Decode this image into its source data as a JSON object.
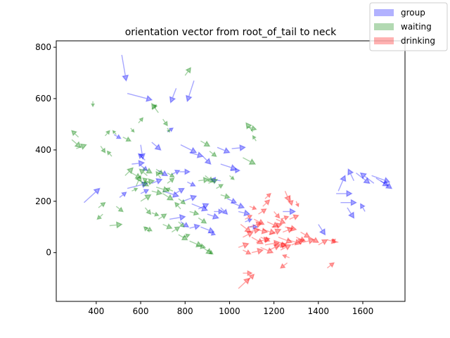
{
  "chart_data": {
    "type": "quiver",
    "title": "orientation vector from root_of_tail to neck",
    "xlabel": "",
    "ylabel": "",
    "xlim": [
      220,
      1790
    ],
    "ylim": [
      -190,
      825
    ],
    "xticks": [
      400,
      600,
      800,
      1000,
      1200,
      1400,
      1600
    ],
    "yticks": [
      0,
      200,
      400,
      600,
      800
    ],
    "xtick_labels": [
      "400",
      "600",
      "800",
      "1000",
      "1200",
      "1400",
      "1600"
    ],
    "ytick_labels": [
      "0",
      "200",
      "400",
      "600",
      "800"
    ],
    "grid": false,
    "legend_position": "top-right",
    "legend": [
      {
        "label": "group",
        "color": "#0000ff"
      },
      {
        "label": "waiting",
        "color": "#008000"
      },
      {
        "label": "drinking",
        "color": "#ff0000"
      }
    ],
    "series": [
      {
        "name": "group",
        "color": "#0000ff",
        "arrows": [
          [
            515,
            770,
            20,
            -100
          ],
          [
            540,
            620,
            110,
            -25
          ],
          [
            760,
            640,
            -25,
            -55
          ],
          [
            840,
            670,
            -30,
            -80
          ],
          [
            720,
            470,
            25,
            15
          ],
          [
            480,
            460,
            30,
            -15
          ],
          [
            600,
            420,
            10,
            -55
          ],
          [
            650,
            430,
            40,
            -30
          ],
          [
            780,
            420,
            70,
            -30
          ],
          [
            820,
            390,
            60,
            -15
          ],
          [
            880,
            375,
            35,
            -30
          ],
          [
            945,
            410,
            55,
            -20
          ],
          [
            1010,
            405,
            60,
            5
          ],
          [
            960,
            345,
            70,
            -20
          ],
          [
            1005,
            320,
            40,
            0
          ],
          [
            960,
            280,
            -45,
            5
          ],
          [
            345,
            195,
            70,
            55
          ],
          [
            505,
            215,
            30,
            20
          ],
          [
            540,
            250,
            90,
            20
          ],
          [
            600,
            230,
            35,
            15
          ],
          [
            680,
            320,
            40,
            -20
          ],
          [
            740,
            305,
            35,
            15
          ],
          [
            775,
            315,
            45,
            0
          ],
          [
            810,
            275,
            35,
            -15
          ],
          [
            560,
            345,
            55,
            5
          ],
          [
            620,
            360,
            -30,
            25
          ],
          [
            600,
            340,
            30,
            -20
          ],
          [
            650,
            270,
            45,
            15
          ],
          [
            700,
            240,
            70,
            -20
          ],
          [
            755,
            230,
            40,
            20
          ],
          [
            790,
            200,
            60,
            20
          ],
          [
            830,
            190,
            70,
            -25
          ],
          [
            860,
            170,
            45,
            20
          ],
          [
            900,
            150,
            50,
            -15
          ],
          [
            930,
            160,
            40,
            0
          ],
          [
            960,
            175,
            30,
            -25
          ],
          [
            730,
            130,
            70,
            10
          ],
          [
            780,
            120,
            35,
            -20
          ],
          [
            820,
            95,
            45,
            10
          ],
          [
            870,
            100,
            60,
            -20
          ],
          [
            905,
            80,
            30,
            -10
          ],
          [
            990,
            210,
            40,
            -15
          ],
          [
            1010,
            195,
            55,
            -20
          ],
          [
            1040,
            160,
            50,
            -10
          ],
          [
            1070,
            120,
            30,
            10
          ],
          [
            1085,
            100,
            40,
            0
          ],
          [
            1240,
            160,
            55,
            0
          ],
          [
            1400,
            110,
            30,
            -40
          ],
          [
            1480,
            230,
            70,
            0
          ],
          [
            1500,
            195,
            70,
            0
          ],
          [
            1530,
            175,
            30,
            -40
          ],
          [
            1560,
            280,
            -25,
            45
          ],
          [
            1570,
            310,
            60,
            -40
          ],
          [
            1610,
            160,
            -20,
            30
          ],
          [
            1640,
            300,
            80,
            -25
          ],
          [
            1660,
            290,
            55,
            -30
          ],
          [
            1680,
            280,
            50,
            -30
          ],
          [
            1490,
            240,
            30,
            60
          ],
          [
            1650,
            270,
            -60,
            40
          ]
        ]
      },
      {
        "name": "waiting",
        "color": "#008000",
        "arrows": [
          [
            290,
            440,
            40,
            -30
          ],
          [
            310,
            405,
            45,
            15
          ],
          [
            320,
            450,
            -30,
            25
          ],
          [
            385,
            590,
            0,
            -20
          ],
          [
            420,
            415,
            20,
            -25
          ],
          [
            440,
            455,
            20,
            20
          ],
          [
            470,
            375,
            -20,
            20
          ],
          [
            490,
            460,
            -15,
            15
          ],
          [
            520,
            450,
            35,
            -15
          ],
          [
            555,
            485,
            15,
            -15
          ],
          [
            590,
            505,
            20,
            20
          ],
          [
            650,
            560,
            20,
            15
          ],
          [
            680,
            545,
            -30,
            35
          ],
          [
            700,
            520,
            20,
            -25
          ],
          [
            720,
            485,
            10,
            -15
          ],
          [
            800,
            690,
            25,
            30
          ],
          [
            1080,
            490,
            40,
            -10
          ],
          [
            1105,
            470,
            -30,
            35
          ],
          [
            1120,
            435,
            -15,
            20
          ],
          [
            1060,
            370,
            55,
            -25
          ],
          [
            870,
            435,
            40,
            -20
          ],
          [
            910,
            395,
            30,
            -20
          ],
          [
            410,
            175,
            30,
            20
          ],
          [
            430,
            150,
            -25,
            -20
          ],
          [
            460,
            105,
            55,
            5
          ],
          [
            490,
            180,
            30,
            -20
          ],
          [
            530,
            300,
            35,
            30
          ],
          [
            560,
            310,
            40,
            -20
          ],
          [
            585,
            285,
            50,
            -25
          ],
          [
            610,
            330,
            40,
            -20
          ],
          [
            640,
            270,
            -30,
            20
          ],
          [
            670,
            255,
            55,
            -15
          ],
          [
            700,
            230,
            45,
            -25
          ],
          [
            720,
            270,
            30,
            20
          ],
          [
            745,
            240,
            -30,
            10
          ],
          [
            770,
            210,
            30,
            -20
          ],
          [
            600,
            200,
            45,
            25
          ],
          [
            620,
            175,
            25,
            -25
          ],
          [
            650,
            155,
            30,
            -10
          ],
          [
            680,
            130,
            35,
            20
          ],
          [
            700,
            110,
            40,
            -15
          ],
          [
            740,
            80,
            35,
            20
          ],
          [
            770,
            70,
            40,
            -20
          ],
          [
            790,
            60,
            30,
            10
          ],
          [
            820,
            45,
            55,
            -20
          ],
          [
            850,
            30,
            40,
            -10
          ],
          [
            880,
            20,
            40,
            -25
          ],
          [
            900,
            10,
            25,
            -15
          ],
          [
            560,
            240,
            25,
            10
          ],
          [
            650,
            240,
            45,
            -10
          ],
          [
            690,
            290,
            -20,
            25
          ],
          [
            720,
            310,
            30,
            -15
          ],
          [
            630,
            300,
            -35,
            25
          ],
          [
            600,
            270,
            60,
            10
          ],
          [
            670,
            325,
            30,
            -20
          ],
          [
            940,
            250,
            30,
            15
          ],
          [
            960,
            225,
            40,
            -10
          ],
          [
            905,
            270,
            40,
            15
          ],
          [
            890,
            300,
            35,
            -25
          ],
          [
            860,
            280,
            45,
            5
          ],
          [
            780,
            170,
            -25,
            25
          ],
          [
            820,
            160,
            40,
            -10
          ],
          [
            860,
            135,
            35,
            -20
          ],
          [
            770,
            120,
            25,
            -20
          ],
          [
            620,
            100,
            30,
            -15
          ],
          [
            640,
            80,
            -25,
            20
          ],
          [
            580,
            260,
            20,
            40
          ],
          [
            1000,
            300,
            20,
            -15
          ]
        ]
      },
      {
        "name": "drinking",
        "color": "#ff0000",
        "arrows": [
          [
            1050,
            110,
            45,
            -30
          ],
          [
            1080,
            80,
            55,
            10
          ],
          [
            1100,
            60,
            50,
            -25
          ],
          [
            1120,
            40,
            60,
            15
          ],
          [
            1140,
            20,
            55,
            -20
          ],
          [
            1160,
            30,
            65,
            10
          ],
          [
            1180,
            10,
            45,
            20
          ],
          [
            1200,
            40,
            55,
            -15
          ],
          [
            1220,
            60,
            60,
            -20
          ],
          [
            1240,
            80,
            45,
            15
          ],
          [
            1260,
            50,
            60,
            -15
          ],
          [
            1280,
            30,
            55,
            20
          ],
          [
            1300,
            60,
            40,
            -15
          ],
          [
            1330,
            40,
            50,
            10
          ],
          [
            1360,
            60,
            40,
            -20
          ],
          [
            1400,
            30,
            40,
            20
          ],
          [
            1440,
            50,
            40,
            -10
          ],
          [
            1060,
            60,
            45,
            20
          ],
          [
            1090,
            100,
            55,
            15
          ],
          [
            1110,
            130,
            45,
            -20
          ],
          [
            1130,
            150,
            35,
            20
          ],
          [
            1150,
            90,
            55,
            -15
          ],
          [
            1170,
            120,
            50,
            -20
          ],
          [
            1190,
            100,
            45,
            10
          ],
          [
            1210,
            130,
            40,
            -15
          ],
          [
            1230,
            10,
            45,
            20
          ],
          [
            1250,
            100,
            50,
            -10
          ],
          [
            1270,
            130,
            40,
            15
          ],
          [
            1100,
            0,
            50,
            10
          ],
          [
            1140,
            60,
            40,
            -15
          ],
          [
            1180,
            70,
            50,
            20
          ],
          [
            1120,
            90,
            50,
            -10
          ],
          [
            1040,
            20,
            45,
            15
          ],
          [
            1060,
            10,
            35,
            -15
          ],
          [
            1150,
            180,
            30,
            25
          ],
          [
            1200,
            160,
            25,
            -25
          ],
          [
            1090,
            180,
            30,
            -10
          ],
          [
            1160,
            210,
            25,
            20
          ],
          [
            1250,
            240,
            20,
            -40
          ],
          [
            1270,
            220,
            10,
            -35
          ],
          [
            1300,
            200,
            10,
            -20
          ],
          [
            1060,
            -80,
            40,
            0
          ],
          [
            1040,
            -140,
            50,
            40
          ],
          [
            1080,
            -110,
            30,
            25
          ],
          [
            1260,
            -40,
            -30,
            -20
          ],
          [
            1270,
            -20,
            -30,
            10
          ],
          [
            1440,
            -60,
            30,
            20
          ],
          [
            1490,
            40,
            -30,
            10
          ],
          [
            1070,
            130,
            30,
            15
          ],
          [
            1210,
            20,
            45,
            15
          ],
          [
            1320,
            80,
            40,
            -20
          ],
          [
            1230,
            130,
            35,
            10
          ]
        ]
      }
    ]
  }
}
